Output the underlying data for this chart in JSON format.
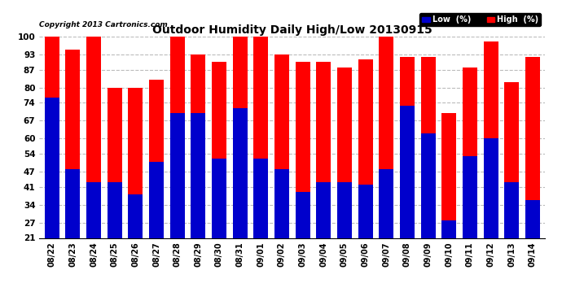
{
  "title": "Outdoor Humidity Daily High/Low 20130915",
  "copyright": "Copyright 2013 Cartronics.com",
  "dates": [
    "08/22",
    "08/23",
    "08/24",
    "08/25",
    "08/26",
    "08/27",
    "08/28",
    "08/29",
    "08/30",
    "08/31",
    "09/01",
    "09/02",
    "09/03",
    "09/04",
    "09/05",
    "09/06",
    "09/07",
    "09/08",
    "09/09",
    "09/10",
    "09/11",
    "09/12",
    "09/13",
    "09/14"
  ],
  "high": [
    100,
    95,
    100,
    80,
    80,
    83,
    100,
    93,
    90,
    100,
    100,
    93,
    90,
    90,
    88,
    91,
    100,
    92,
    92,
    70,
    88,
    98,
    82,
    92
  ],
  "low": [
    76,
    48,
    43,
    43,
    38,
    51,
    70,
    70,
    52,
    72,
    52,
    48,
    39,
    43,
    43,
    42,
    48,
    73,
    62,
    28,
    53,
    60,
    43,
    36
  ],
  "high_color": "#ff0000",
  "low_color": "#0000cc",
  "bg_color": "#ffffff",
  "grid_color": "#bbbbbb",
  "yticks": [
    21,
    27,
    34,
    41,
    47,
    54,
    60,
    67,
    74,
    80,
    87,
    93,
    100
  ],
  "ymin": 21,
  "ymax": 100,
  "bar_width": 0.7,
  "legend_low_label": "Low  (%)",
  "legend_high_label": "High  (%)",
  "figwidth": 6.9,
  "figheight": 3.75,
  "dpi": 100
}
